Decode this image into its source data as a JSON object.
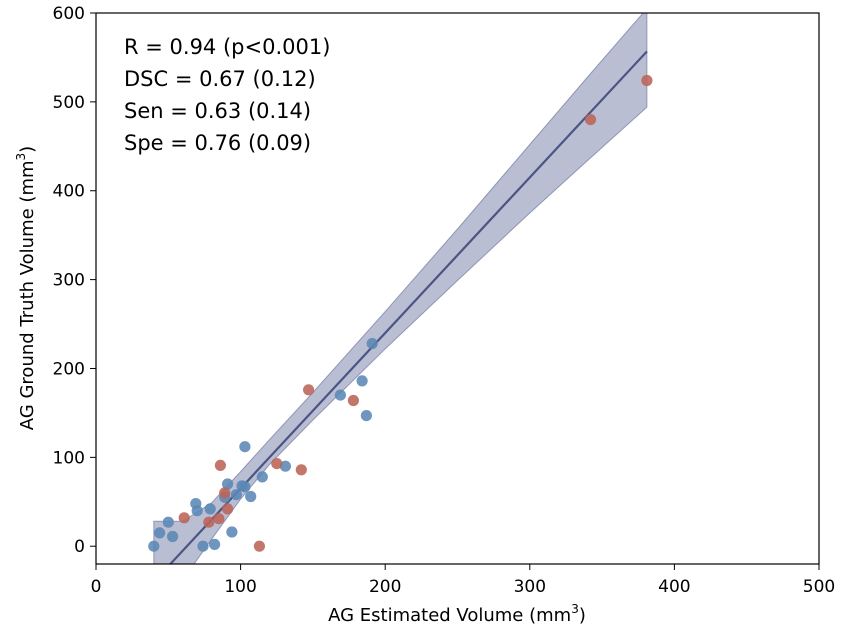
{
  "chart_data": {
    "type": "scatter",
    "xlabel": "AG Estimated Volume (mm",
    "xlabel_sup": "3",
    "xlabel_end": ")",
    "ylabel": "AG Ground Truth Volume (mm",
    "ylabel_sup": "3",
    "ylabel_end": ")",
    "xlim": [
      0,
      500
    ],
    "ylim": [
      -20,
      600
    ],
    "xticks": [
      0,
      100,
      200,
      300,
      400,
      500
    ],
    "yticks": [
      0,
      100,
      200,
      300,
      400,
      500,
      600
    ],
    "stats": [
      "R = 0.94 (p<0.001)",
      "DSC = 0.67 (0.12)",
      "Sen = 0.63 (0.14)",
      "Spe = 0.76 (0.09)"
    ],
    "colors": {
      "blue": "#5b87b5",
      "red": "#bb6457",
      "line": "#4a5585",
      "band": "#8c92b4"
    },
    "regression": {
      "x_range": [
        40,
        381
      ],
      "slope": 1.75,
      "intercept": -110,
      "band": [
        {
          "x": 40,
          "lo": -90,
          "hi": 28
        },
        {
          "x": 60,
          "lo": -38,
          "hi": 28
        },
        {
          "x": 80,
          "lo": 8,
          "hi": 49
        },
        {
          "x": 100,
          "lo": 53,
          "hi": 84
        },
        {
          "x": 120,
          "lo": 92,
          "hi": 120
        },
        {
          "x": 150,
          "lo": 142,
          "hi": 173
        },
        {
          "x": 200,
          "lo": 222,
          "hi": 264
        },
        {
          "x": 250,
          "lo": 299,
          "hi": 357
        },
        {
          "x": 300,
          "lo": 375,
          "hi": 452
        },
        {
          "x": 340,
          "lo": 434,
          "hi": 528
        },
        {
          "x": 381,
          "lo": 494,
          "hi": 605
        }
      ]
    },
    "series": [
      {
        "name": "blue",
        "color": "#5b87b5",
        "points": [
          {
            "x": 40,
            "y": 0
          },
          {
            "x": 44,
            "y": 15
          },
          {
            "x": 50,
            "y": 27
          },
          {
            "x": 53,
            "y": 11
          },
          {
            "x": 69,
            "y": 48
          },
          {
            "x": 70,
            "y": 40
          },
          {
            "x": 74,
            "y": 0
          },
          {
            "x": 79,
            "y": 42
          },
          {
            "x": 82,
            "y": 2
          },
          {
            "x": 89,
            "y": 55
          },
          {
            "x": 91,
            "y": 70
          },
          {
            "x": 94,
            "y": 16
          },
          {
            "x": 97,
            "y": 58
          },
          {
            "x": 101,
            "y": 68
          },
          {
            "x": 103,
            "y": 67
          },
          {
            "x": 103,
            "y": 112
          },
          {
            "x": 107,
            "y": 56
          },
          {
            "x": 115,
            "y": 78
          },
          {
            "x": 131,
            "y": 90
          },
          {
            "x": 169,
            "y": 170
          },
          {
            "x": 184,
            "y": 186
          },
          {
            "x": 187,
            "y": 147
          },
          {
            "x": 191,
            "y": 228
          }
        ]
      },
      {
        "name": "red",
        "color": "#bb6457",
        "points": [
          {
            "x": 61,
            "y": 32
          },
          {
            "x": 78,
            "y": 27
          },
          {
            "x": 85,
            "y": 31
          },
          {
            "x": 86,
            "y": 91
          },
          {
            "x": 89,
            "y": 60
          },
          {
            "x": 91,
            "y": 42
          },
          {
            "x": 113,
            "y": 0
          },
          {
            "x": 125,
            "y": 93
          },
          {
            "x": 142,
            "y": 86
          },
          {
            "x": 147,
            "y": 176
          },
          {
            "x": 178,
            "y": 164
          },
          {
            "x": 342,
            "y": 480
          },
          {
            "x": 381,
            "y": 524
          }
        ]
      }
    ]
  }
}
